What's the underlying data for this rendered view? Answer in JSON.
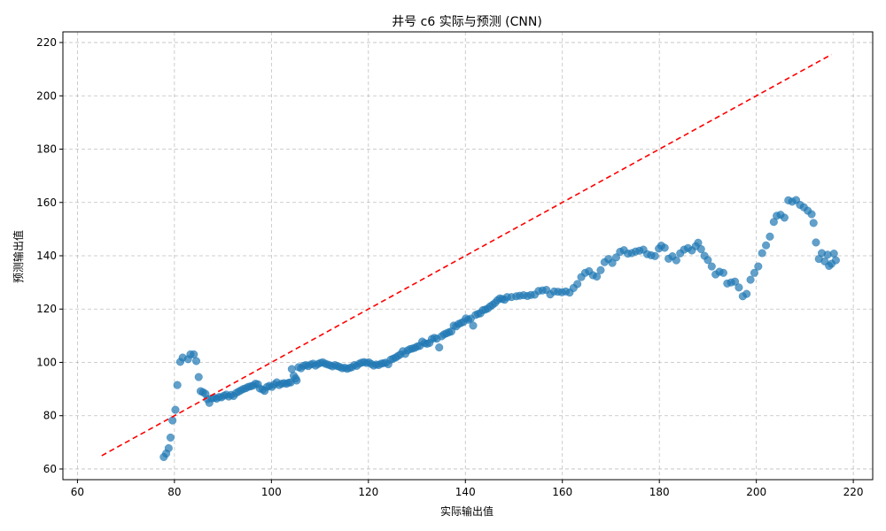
{
  "chart_data": {
    "type": "scatter",
    "title": "井号 c6 实际与预测 (CNN)",
    "xlabel": "实际输出值",
    "ylabel": "预测输出值",
    "xlim": [
      57,
      224
    ],
    "ylim": [
      56,
      224
    ],
    "xticks": [
      60,
      80,
      100,
      120,
      140,
      160,
      180,
      200,
      220
    ],
    "yticks": [
      60,
      80,
      100,
      120,
      140,
      160,
      180,
      200,
      220
    ],
    "grid": true,
    "point_color": "#1f77b4",
    "reference_line": {
      "x": [
        65,
        215.5
      ],
      "y": [
        65,
        215.5
      ],
      "color": "#ff0000",
      "style": "dashed"
    },
    "points": [
      [
        77.8,
        64.5
      ],
      [
        78.3,
        65.8
      ],
      [
        78.8,
        67.8
      ],
      [
        79.2,
        71.8
      ],
      [
        79.6,
        78.2
      ],
      [
        80.2,
        82.2
      ],
      [
        80.6,
        91.5
      ],
      [
        81.2,
        100.2
      ],
      [
        81.7,
        101.8
      ],
      [
        82.8,
        101.2
      ],
      [
        83.3,
        103.0
      ],
      [
        84.0,
        103.0
      ],
      [
        84.5,
        100.5
      ],
      [
        85.0,
        94.5
      ],
      [
        85.4,
        89.2
      ],
      [
        85.9,
        88.8
      ],
      [
        86.4,
        88.2
      ],
      [
        86.8,
        86.2
      ],
      [
        87.2,
        84.8
      ],
      [
        87.7,
        86.5
      ],
      [
        88.2,
        86.7
      ],
      [
        88.7,
        86.4
      ],
      [
        89.2,
        87.0
      ],
      [
        89.7,
        86.9
      ],
      [
        90.2,
        87.5
      ],
      [
        90.7,
        87.9
      ],
      [
        91.2,
        87.2
      ],
      [
        91.7,
        87.8
      ],
      [
        92.2,
        87.4
      ],
      [
        92.7,
        88.5
      ],
      [
        93.2,
        89.0
      ],
      [
        93.7,
        89.5
      ],
      [
        94.2,
        90.0
      ],
      [
        94.7,
        90.3
      ],
      [
        95.2,
        90.8
      ],
      [
        95.7,
        91.0
      ],
      [
        96.2,
        91.3
      ],
      [
        96.7,
        92.0
      ],
      [
        97.2,
        91.8
      ],
      [
        97.6,
        90.2
      ],
      [
        98.2,
        89.8
      ],
      [
        98.6,
        89.3
      ],
      [
        99.1,
        90.8
      ],
      [
        99.6,
        91.2
      ],
      [
        100.1,
        90.8
      ],
      [
        100.6,
        91.7
      ],
      [
        101.1,
        92.5
      ],
      [
        101.6,
        91.5
      ],
      [
        102.1,
        92.0
      ],
      [
        102.6,
        92.2
      ],
      [
        103.1,
        92.0
      ],
      [
        103.6,
        92.4
      ],
      [
        104.0,
        92.5
      ],
      [
        104.2,
        97.5
      ],
      [
        104.6,
        95.0
      ],
      [
        105.0,
        94.0
      ],
      [
        105.2,
        93.2
      ],
      [
        105.6,
        98.2
      ],
      [
        106.1,
        97.8
      ],
      [
        106.6,
        98.7
      ],
      [
        107.1,
        99.0
      ],
      [
        107.6,
        98.6
      ],
      [
        108.1,
        99.2
      ],
      [
        108.6,
        99.5
      ],
      [
        109.1,
        98.8
      ],
      [
        109.6,
        99.4
      ],
      [
        110.1,
        99.8
      ],
      [
        110.6,
        100.0
      ],
      [
        111.1,
        99.5
      ],
      [
        111.6,
        99.2
      ],
      [
        112.1,
        98.9
      ],
      [
        112.6,
        98.5
      ],
      [
        113.1,
        99.0
      ],
      [
        113.6,
        98.6
      ],
      [
        114.1,
        98.3
      ],
      [
        114.6,
        97.8
      ],
      [
        115.1,
        98.0
      ],
      [
        115.6,
        97.6
      ],
      [
        116.1,
        97.9
      ],
      [
        116.6,
        98.2
      ],
      [
        117.1,
        99.0
      ],
      [
        117.6,
        98.7
      ],
      [
        118.1,
        99.5
      ],
      [
        118.6,
        99.9
      ],
      [
        119.1,
        100.1
      ],
      [
        119.6,
        99.8
      ],
      [
        120.1,
        100.0
      ],
      [
        120.6,
        99.4
      ],
      [
        121.1,
        98.8
      ],
      [
        121.6,
        99.2
      ],
      [
        122.1,
        99.0
      ],
      [
        122.6,
        99.5
      ],
      [
        123.1,
        99.7
      ],
      [
        123.6,
        99.9
      ],
      [
        124.1,
        99.3
      ],
      [
        124.6,
        101.0
      ],
      [
        125.1,
        101.4
      ],
      [
        125.6,
        101.8
      ],
      [
        126.1,
        102.4
      ],
      [
        126.6,
        103.0
      ],
      [
        127.1,
        104.2
      ],
      [
        127.6,
        103.2
      ],
      [
        128.1,
        104.5
      ],
      [
        128.6,
        105.0
      ],
      [
        129.1,
        105.2
      ],
      [
        129.6,
        105.5
      ],
      [
        130.1,
        106.0
      ],
      [
        130.6,
        106.2
      ],
      [
        131.1,
        107.8
      ],
      [
        131.6,
        107.2
      ],
      [
        132.1,
        107.0
      ],
      [
        132.6,
        107.3
      ],
      [
        133.1,
        108.8
      ],
      [
        133.6,
        109.2
      ],
      [
        134.1,
        108.9
      ],
      [
        134.6,
        105.6
      ],
      [
        135.1,
        109.8
      ],
      [
        135.6,
        110.5
      ],
      [
        136.1,
        110.9
      ],
      [
        136.6,
        111.3
      ],
      [
        137.1,
        111.6
      ],
      [
        137.6,
        113.8
      ],
      [
        138.1,
        113.5
      ],
      [
        138.6,
        114.4
      ],
      [
        139.1,
        114.8
      ],
      [
        139.6,
        115.2
      ],
      [
        140.1,
        116.5
      ],
      [
        140.6,
        116.0
      ],
      [
        141.1,
        116.4
      ],
      [
        141.6,
        113.8
      ],
      [
        142.1,
        117.8
      ],
      [
        142.6,
        118.2
      ],
      [
        143.1,
        118.4
      ],
      [
        143.6,
        119.6
      ],
      [
        144.1,
        119.8
      ],
      [
        144.6,
        120.2
      ],
      [
        145.1,
        121.0
      ],
      [
        145.6,
        121.6
      ],
      [
        146.1,
        122.3
      ],
      [
        146.6,
        123.3
      ],
      [
        147.1,
        124.0
      ],
      [
        147.6,
        123.8
      ],
      [
        148.1,
        123.5
      ],
      [
        148.6,
        124.5
      ],
      [
        149.5,
        124.5
      ],
      [
        150.5,
        124.8
      ],
      [
        151.2,
        125.0
      ],
      [
        152.0,
        125.2
      ],
      [
        152.8,
        124.9
      ],
      [
        153.5,
        125.3
      ],
      [
        154.3,
        125.4
      ],
      [
        155.1,
        126.8
      ],
      [
        155.9,
        127.0
      ],
      [
        156.7,
        127.2
      ],
      [
        157.5,
        125.5
      ],
      [
        158.3,
        126.6
      ],
      [
        159.1,
        126.5
      ],
      [
        159.9,
        126.3
      ],
      [
        160.7,
        126.6
      ],
      [
        161.5,
        126.2
      ],
      [
        162.3,
        127.9
      ],
      [
        163.1,
        129.4
      ],
      [
        163.9,
        132.0
      ],
      [
        164.7,
        133.6
      ],
      [
        165.5,
        134.2
      ],
      [
        166.3,
        132.7
      ],
      [
        167.1,
        132.2
      ],
      [
        167.9,
        134.6
      ],
      [
        168.7,
        137.6
      ],
      [
        169.5,
        138.8
      ],
      [
        170.3,
        137.3
      ],
      [
        171.1,
        139.4
      ],
      [
        171.9,
        141.5
      ],
      [
        172.7,
        142.1
      ],
      [
        173.5,
        140.8
      ],
      [
        174.3,
        141.0
      ],
      [
        175.1,
        141.6
      ],
      [
        175.9,
        141.9
      ],
      [
        176.7,
        142.3
      ],
      [
        177.5,
        140.6
      ],
      [
        178.3,
        140.2
      ],
      [
        179.1,
        139.9
      ],
      [
        179.9,
        142.7
      ],
      [
        180.4,
        143.8
      ],
      [
        181.1,
        143.0
      ],
      [
        181.9,
        138.9
      ],
      [
        182.7,
        139.8
      ],
      [
        183.5,
        138.3
      ],
      [
        184.3,
        140.9
      ],
      [
        185.1,
        142.3
      ],
      [
        185.9,
        142.9
      ],
      [
        186.7,
        142.0
      ],
      [
        187.5,
        143.6
      ],
      [
        188.0,
        144.9
      ],
      [
        188.6,
        142.5
      ],
      [
        189.3,
        140.0
      ],
      [
        190.0,
        138.4
      ],
      [
        190.8,
        136.0
      ],
      [
        191.6,
        133.0
      ],
      [
        192.4,
        134.0
      ],
      [
        193.2,
        133.6
      ],
      [
        194.0,
        129.6
      ],
      [
        194.8,
        130.0
      ],
      [
        195.6,
        130.3
      ],
      [
        196.4,
        128.1
      ],
      [
        197.2,
        124.8
      ],
      [
        198.0,
        125.7
      ],
      [
        198.8,
        131.0
      ],
      [
        199.6,
        133.6
      ],
      [
        200.4,
        136.0
      ],
      [
        201.2,
        141.0
      ],
      [
        202.0,
        143.9
      ],
      [
        202.8,
        147.2
      ],
      [
        203.6,
        152.7
      ],
      [
        204.2,
        155.0
      ],
      [
        205.0,
        155.4
      ],
      [
        205.8,
        154.3
      ],
      [
        206.6,
        160.8
      ],
      [
        207.4,
        160.3
      ],
      [
        208.2,
        160.9
      ],
      [
        209.0,
        159.1
      ],
      [
        209.8,
        158.2
      ],
      [
        210.6,
        156.9
      ],
      [
        211.4,
        155.6
      ],
      [
        211.8,
        152.3
      ],
      [
        212.3,
        145.0
      ],
      [
        212.9,
        138.8
      ],
      [
        213.5,
        141.0
      ],
      [
        214.1,
        137.9
      ],
      [
        214.7,
        140.4
      ],
      [
        215.0,
        136.2
      ],
      [
        215.5,
        137.0
      ],
      [
        216.0,
        140.8
      ],
      [
        216.4,
        138.3
      ]
    ]
  }
}
